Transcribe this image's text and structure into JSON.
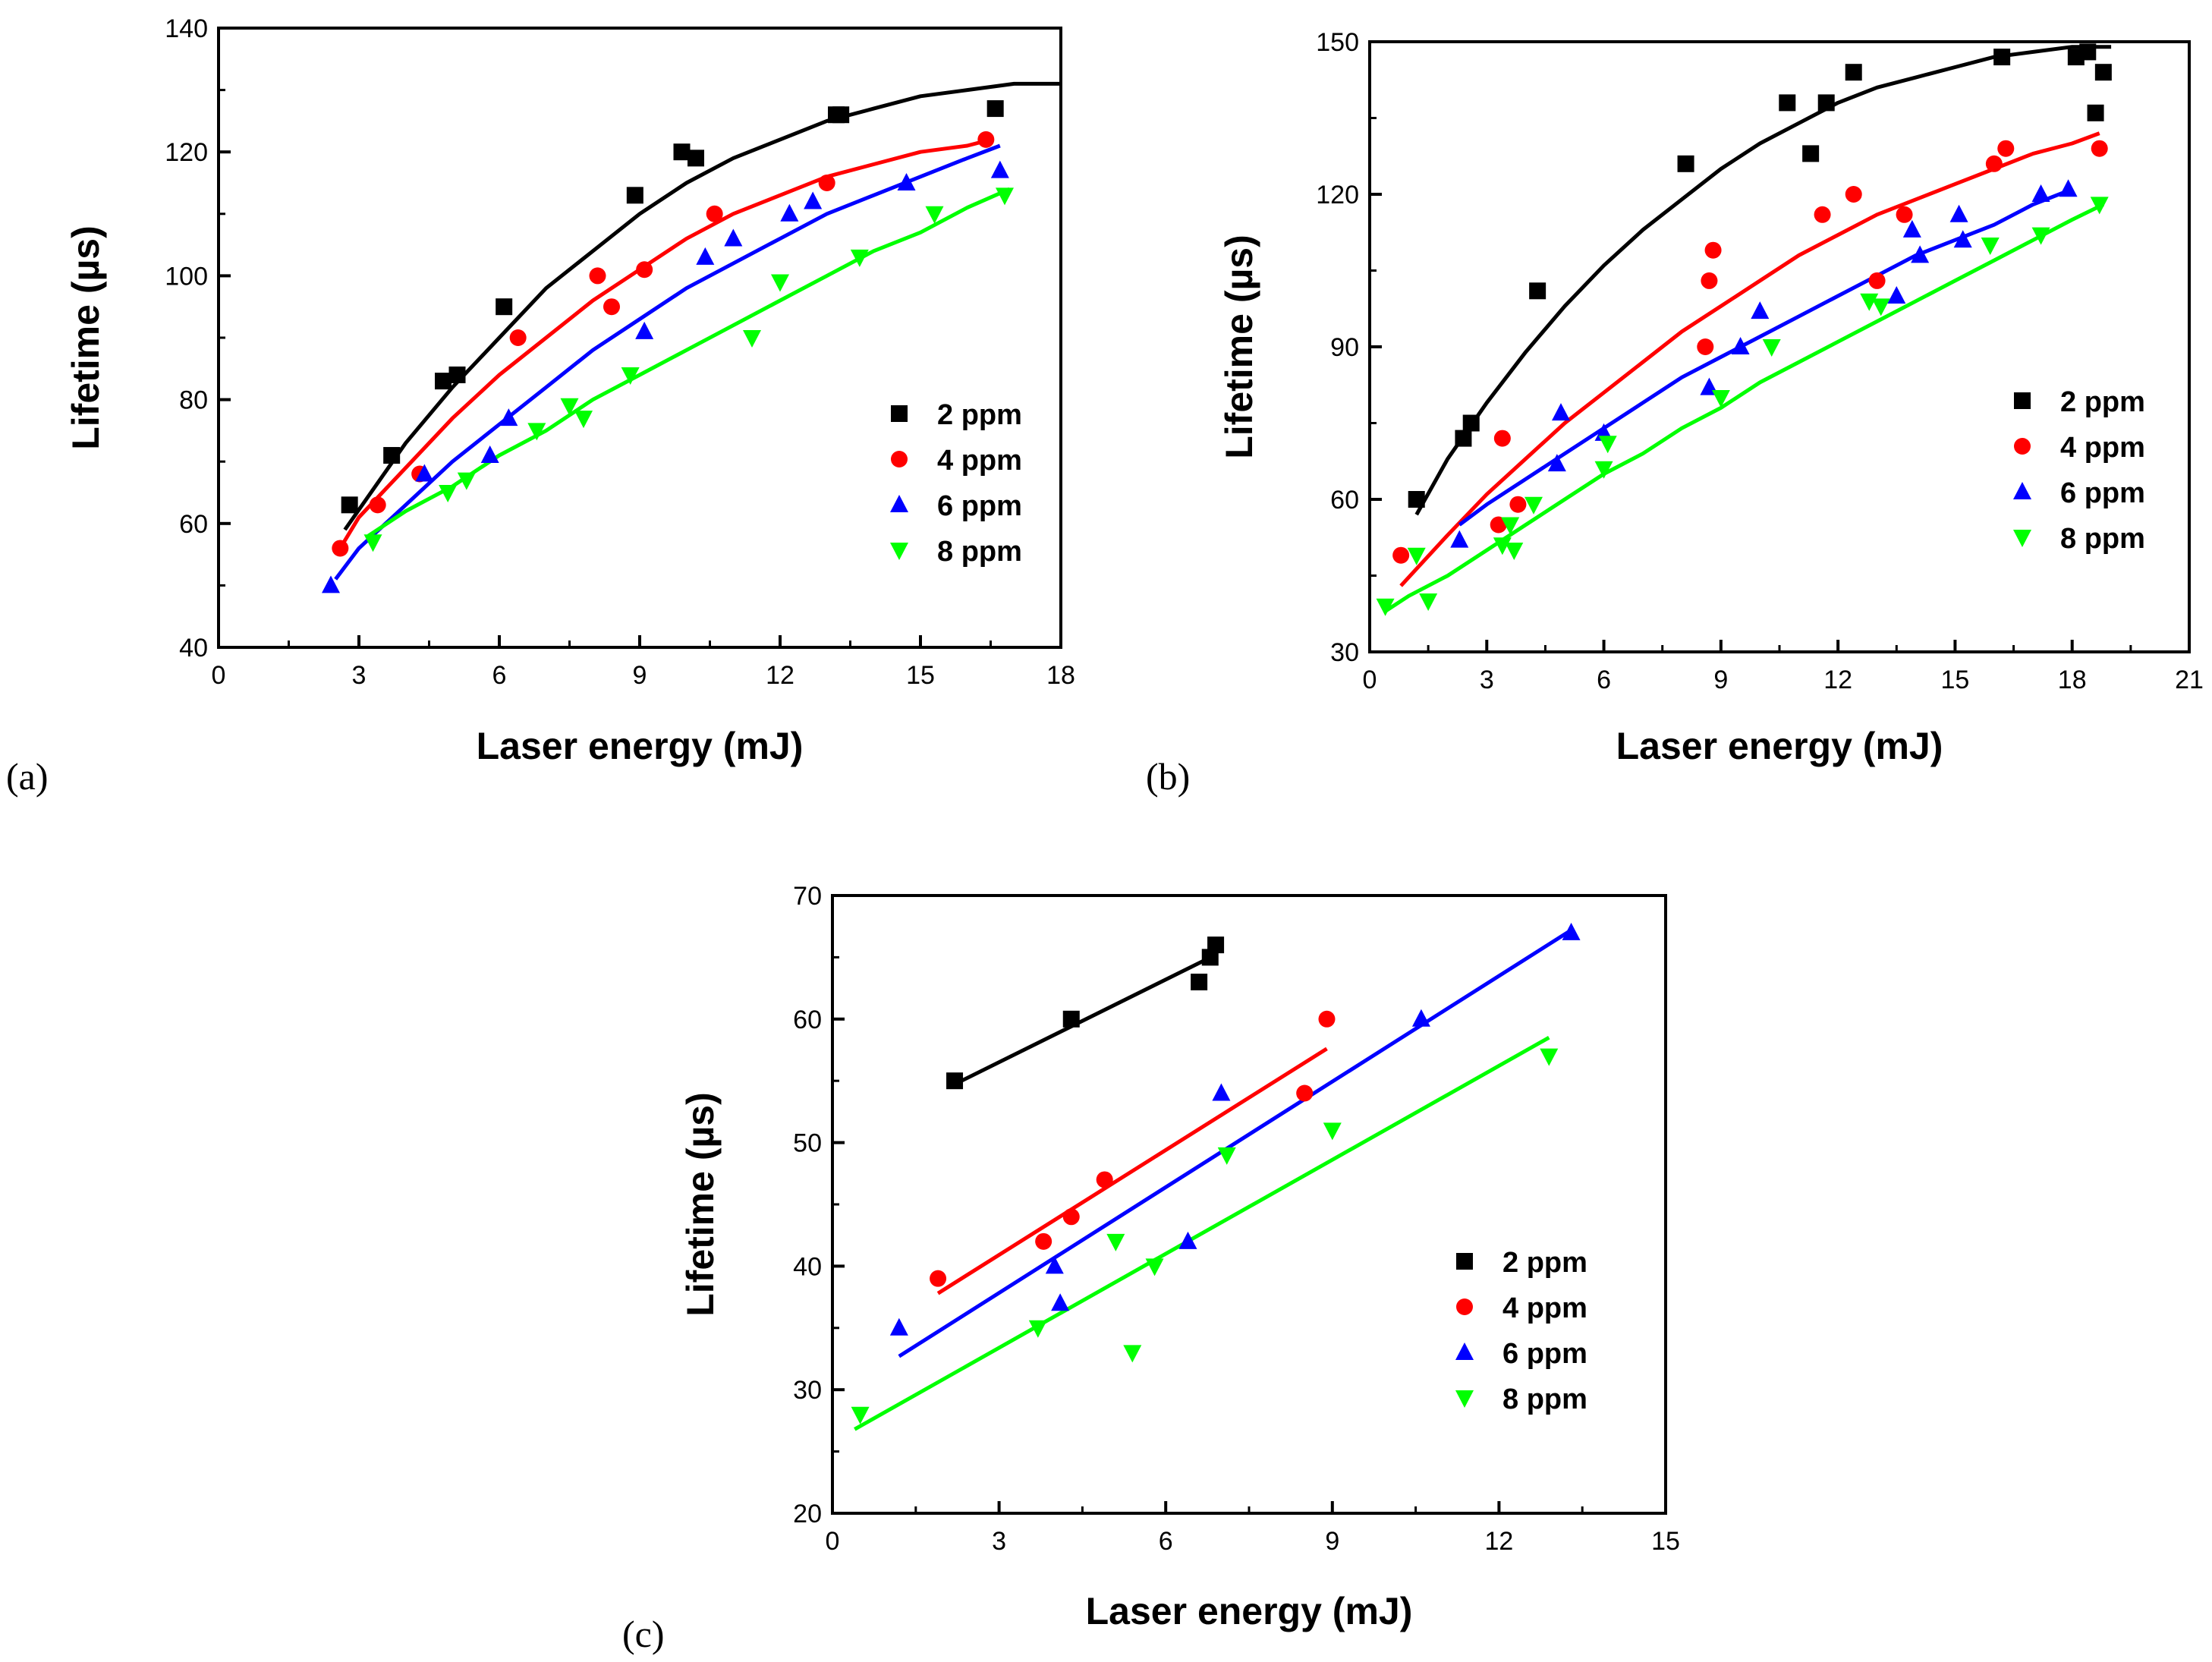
{
  "chart_data": [
    {
      "type": "scatter",
      "panel_label": "(a)",
      "xlabel": "Laser energy (mJ)",
      "ylabel": "Lifetime (µs)",
      "xlim": [
        0,
        18
      ],
      "ylim": [
        40,
        140
      ],
      "xticks": [
        "0",
        "3",
        "6",
        "9",
        "12",
        "15",
        "18"
      ],
      "yticks": [
        "40",
        "60",
        "80",
        "100",
        "120",
        "140"
      ],
      "legend_position": "right",
      "series": [
        {
          "name": "2 ppm",
          "color": "#000000",
          "marker": "square",
          "x": [
            2.8,
            3.7,
            4.8,
            5.1,
            6.1,
            8.9,
            9.9,
            10.2,
            13.2,
            13.3,
            16.6
          ],
          "y": [
            63,
            71,
            83,
            84,
            95,
            113,
            120,
            119,
            126,
            126,
            127
          ],
          "fit": {
            "x": [
              2.7,
              4,
              5,
              6,
              7,
              8,
              9,
              10,
              11,
              12,
              13,
              14,
              15,
              16,
              17,
              18
            ],
            "y": [
              59,
              73,
              82,
              90,
              98,
              104,
              110,
              115,
              119,
              122,
              125,
              127,
              129,
              130,
              131,
              131
            ]
          }
        },
        {
          "name": "4 ppm",
          "color": "#ff0000",
          "marker": "circle",
          "x": [
            2.6,
            3.4,
            4.3,
            6.4,
            8.1,
            8.4,
            9.1,
            10.6,
            13.0,
            16.4
          ],
          "y": [
            56,
            63,
            68,
            90,
            100,
            95,
            101,
            110,
            115,
            122
          ],
          "fit": {
            "x": [
              2.6,
              3,
              4,
              5,
              6,
              7,
              8,
              9,
              10,
              11,
              12,
              13,
              14,
              15,
              16,
              16.5
            ],
            "y": [
              56,
              61,
              69,
              77,
              84,
              90,
              96,
              101,
              106,
              110,
              113,
              116,
              118,
              120,
              121,
              122
            ]
          }
        },
        {
          "name": "6 ppm",
          "color": "#0000ff",
          "marker": "triangle-up",
          "x": [
            2.4,
            4.4,
            5.8,
            6.2,
            9.1,
            10.4,
            11.0,
            12.2,
            12.7,
            14.7,
            16.7
          ],
          "y": [
            50,
            68,
            71,
            77,
            91,
            103,
            106,
            110,
            112,
            115,
            117
          ],
          "fit": {
            "x": [
              2.5,
              3,
              4,
              5,
              6,
              7,
              8,
              9,
              10,
              11,
              12,
              13,
              14,
              15,
              16,
              16.7
            ],
            "y": [
              51,
              56,
              63,
              70,
              76,
              82,
              88,
              93,
              98,
              102,
              106,
              110,
              113,
              116,
              119,
              121
            ]
          }
        },
        {
          "name": "8 ppm",
          "color": "#00ff00",
          "marker": "triangle-down",
          "x": [
            3.3,
            4.9,
            5.3,
            6.8,
            7.5,
            7.8,
            8.8,
            11.4,
            12.0,
            13.7,
            15.3,
            16.8
          ],
          "y": [
            57,
            65,
            67,
            75,
            79,
            77,
            84,
            90,
            99,
            103,
            110,
            113
          ],
          "fit": {
            "x": [
              3.2,
              4,
              5,
              6,
              7,
              8,
              9,
              10,
              11,
              12,
              13,
              14,
              15,
              16,
              16.9
            ],
            "y": [
              58,
              62,
              66,
              71,
              75,
              80,
              84,
              88,
              92,
              96,
              100,
              104,
              107,
              111,
              114
            ]
          }
        }
      ]
    },
    {
      "type": "scatter",
      "panel_label": "(b)",
      "xlabel": "Laser energy (mJ)",
      "ylabel": "Lifetime (µs)",
      "xlim": [
        0,
        21
      ],
      "ylim": [
        30,
        150
      ],
      "xticks": [
        "0",
        "3",
        "6",
        "9",
        "12",
        "15",
        "18",
        "21"
      ],
      "yticks": [
        "30",
        "60",
        "90",
        "120",
        "150"
      ],
      "legend_position": "right",
      "series": [
        {
          "name": "2 ppm",
          "color": "#000000",
          "marker": "square",
          "x": [
            1.2,
            2.4,
            2.6,
            4.3,
            8.1,
            10.7,
            11.3,
            11.7,
            12.4,
            16.2,
            18.1,
            18.4,
            18.6,
            18.8
          ],
          "y": [
            60,
            72,
            75,
            101,
            126,
            138,
            128,
            138,
            144,
            147,
            147,
            148,
            136,
            144
          ],
          "fit": {
            "x": [
              1.2,
              2,
              3,
              4,
              5,
              6,
              7,
              8,
              9,
              10,
              11,
              12,
              13,
              14,
              15,
              16,
              17,
              18,
              19
            ],
            "y": [
              57,
              68,
              79,
              89,
              98,
              106,
              113,
              119,
              125,
              130,
              134,
              138,
              141,
              143,
              145,
              147,
              148,
              149,
              149
            ]
          }
        },
        {
          "name": "4 ppm",
          "color": "#ff0000",
          "marker": "circle",
          "x": [
            0.8,
            3.3,
            3.4,
            3.8,
            8.6,
            8.7,
            8.8,
            11.6,
            12.4,
            13.0,
            13.7,
            16.0,
            16.3,
            18.7
          ],
          "y": [
            49,
            55,
            72,
            59,
            90,
            103,
            109,
            116,
            120,
            103,
            116,
            126,
            129,
            129
          ],
          "fit": {
            "x": [
              0.8,
              2,
              3,
              4,
              5,
              6,
              7,
              8,
              9,
              10,
              11,
              12,
              13,
              14,
              15,
              16,
              17,
              18,
              18.7
            ],
            "y": [
              43,
              53,
              61,
              68,
              75,
              81,
              87,
              93,
              98,
              103,
              108,
              112,
              116,
              119,
              122,
              125,
              128,
              130,
              132
            ]
          }
        },
        {
          "name": "6 ppm",
          "color": "#0000ff",
          "marker": "triangle-up",
          "x": [
            2.3,
            4.8,
            4.9,
            6.0,
            8.7,
            9.5,
            10.0,
            13.5,
            13.9,
            14.1,
            15.1,
            15.2,
            17.2,
            17.9
          ],
          "y": [
            52,
            67,
            77,
            73,
            82,
            90,
            97,
            100,
            113,
            108,
            116,
            111,
            120,
            121
          ],
          "fit": {
            "x": [
              2.3,
              3,
              4,
              5,
              6,
              7,
              8,
              9,
              10,
              11,
              12,
              13,
              14,
              15,
              16,
              17,
              18
            ],
            "y": [
              55,
              59,
              64,
              69,
              74,
              79,
              84,
              88,
              92,
              96,
              100,
              104,
              108,
              111,
              114,
              118,
              121
            ]
          }
        },
        {
          "name": "8 ppm",
          "color": "#00ff00",
          "marker": "triangle-down",
          "x": [
            0.4,
            1.2,
            1.5,
            3.4,
            3.6,
            3.7,
            4.2,
            6.0,
            6.1,
            9.0,
            10.3,
            12.8,
            13.1,
            15.9,
            17.2,
            18.7
          ],
          "y": [
            39,
            49,
            40,
            51,
            55,
            50,
            59,
            66,
            71,
            80,
            90,
            99,
            98,
            110,
            112,
            118
          ],
          "fit": {
            "x": [
              0.4,
              1,
              2,
              3,
              4,
              5,
              6,
              7,
              8,
              9,
              10,
              11,
              12,
              13,
              14,
              15,
              16,
              17,
              18,
              18.8
            ],
            "y": [
              38,
              41,
              45,
              50,
              55,
              60,
              65,
              69,
              74,
              78,
              83,
              87,
              91,
              95,
              99,
              103,
              107,
              111,
              115,
              118
            ]
          }
        }
      ]
    },
    {
      "type": "scatter",
      "panel_label": "(c)",
      "xlabel": "Laser energy (mJ)",
      "ylabel": "Lifetime (µs)",
      "xlim": [
        0,
        15
      ],
      "ylim": [
        20,
        70
      ],
      "xticks": [
        "0",
        "3",
        "6",
        "9",
        "12",
        "15"
      ],
      "yticks": [
        "20",
        "30",
        "40",
        "50",
        "60",
        "70"
      ],
      "legend_position": "right",
      "series": [
        {
          "name": "2 ppm",
          "color": "#000000",
          "marker": "square",
          "x": [
            2.2,
            4.3,
            6.6,
            6.8,
            6.9
          ],
          "y": [
            55,
            60,
            63,
            65,
            66
          ],
          "fit": {
            "x": [
              2.1,
              6.9
            ],
            "y": [
              54.5,
              65.2
            ]
          }
        },
        {
          "name": "4 ppm",
          "color": "#ff0000",
          "marker": "circle",
          "x": [
            1.9,
            3.8,
            4.3,
            4.9,
            8.5,
            8.9
          ],
          "y": [
            39,
            42,
            44,
            47,
            54,
            60
          ],
          "fit": {
            "x": [
              1.9,
              8.9
            ],
            "y": [
              37.8,
              57.6
            ]
          }
        },
        {
          "name": "6 ppm",
          "color": "#0000ff",
          "marker": "triangle-up",
          "x": [
            1.2,
            4.0,
            4.1,
            7.0,
            6.4,
            10.6,
            13.3
          ],
          "y": [
            35,
            40,
            37,
            54,
            42,
            60,
            67
          ],
          "fit": {
            "x": [
              1.2,
              13.3
            ],
            "y": [
              32.7,
              67.2
            ]
          }
        },
        {
          "name": "8 ppm",
          "color": "#00ff00",
          "marker": "triangle-down",
          "x": [
            0.5,
            3.7,
            5.1,
            5.4,
            5.8,
            7.1,
            9.0,
            12.9
          ],
          "y": [
            28,
            35,
            42,
            33,
            40,
            49,
            51,
            57
          ],
          "fit": {
            "x": [
              0.4,
              12.9
            ],
            "y": [
              26.8,
              58.5
            ]
          }
        }
      ]
    }
  ]
}
